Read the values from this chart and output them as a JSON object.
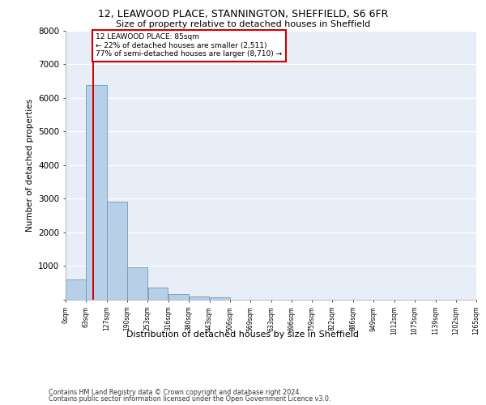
{
  "title_line1": "12, LEAWOOD PLACE, STANNINGTON, SHEFFIELD, S6 6FR",
  "title_line2": "Size of property relative to detached houses in Sheffield",
  "xlabel": "Distribution of detached houses by size in Sheffield",
  "ylabel": "Number of detached properties",
  "footer_line1": "Contains HM Land Registry data © Crown copyright and database right 2024.",
  "footer_line2": "Contains public sector information licensed under the Open Government Licence v3.0.",
  "annotation_line1": "12 LEAWOOD PLACE: 85sqm",
  "annotation_line2": "← 22% of detached houses are smaller (2,511)",
  "annotation_line3": "77% of semi-detached houses are larger (8,710) →",
  "property_size": 85,
  "bar_edges": [
    0,
    63,
    127,
    190,
    253,
    316,
    380,
    443,
    506,
    569,
    633,
    696,
    759,
    822,
    886,
    949,
    1012,
    1075,
    1139,
    1202,
    1265
  ],
  "bar_heights": [
    590,
    6380,
    2910,
    970,
    350,
    165,
    105,
    75,
    0,
    0,
    0,
    0,
    0,
    0,
    0,
    0,
    0,
    0,
    0,
    0
  ],
  "tick_labels": [
    "0sqm",
    "63sqm",
    "127sqm",
    "190sqm",
    "253sqm",
    "316sqm",
    "380sqm",
    "443sqm",
    "506sqm",
    "569sqm",
    "633sqm",
    "696sqm",
    "759sqm",
    "822sqm",
    "886sqm",
    "949sqm",
    "1012sqm",
    "1075sqm",
    "1139sqm",
    "1202sqm",
    "1265sqm"
  ],
  "bar_color": "#b8cfe8",
  "bar_edge_color": "#6a9cc0",
  "vline_color": "#cc0000",
  "annotation_box_color": "#cc0000",
  "background_color": "#e8eef8",
  "ylim": [
    0,
    8000
  ],
  "yticks": [
    0,
    1000,
    2000,
    3000,
    4000,
    5000,
    6000,
    7000,
    8000
  ]
}
